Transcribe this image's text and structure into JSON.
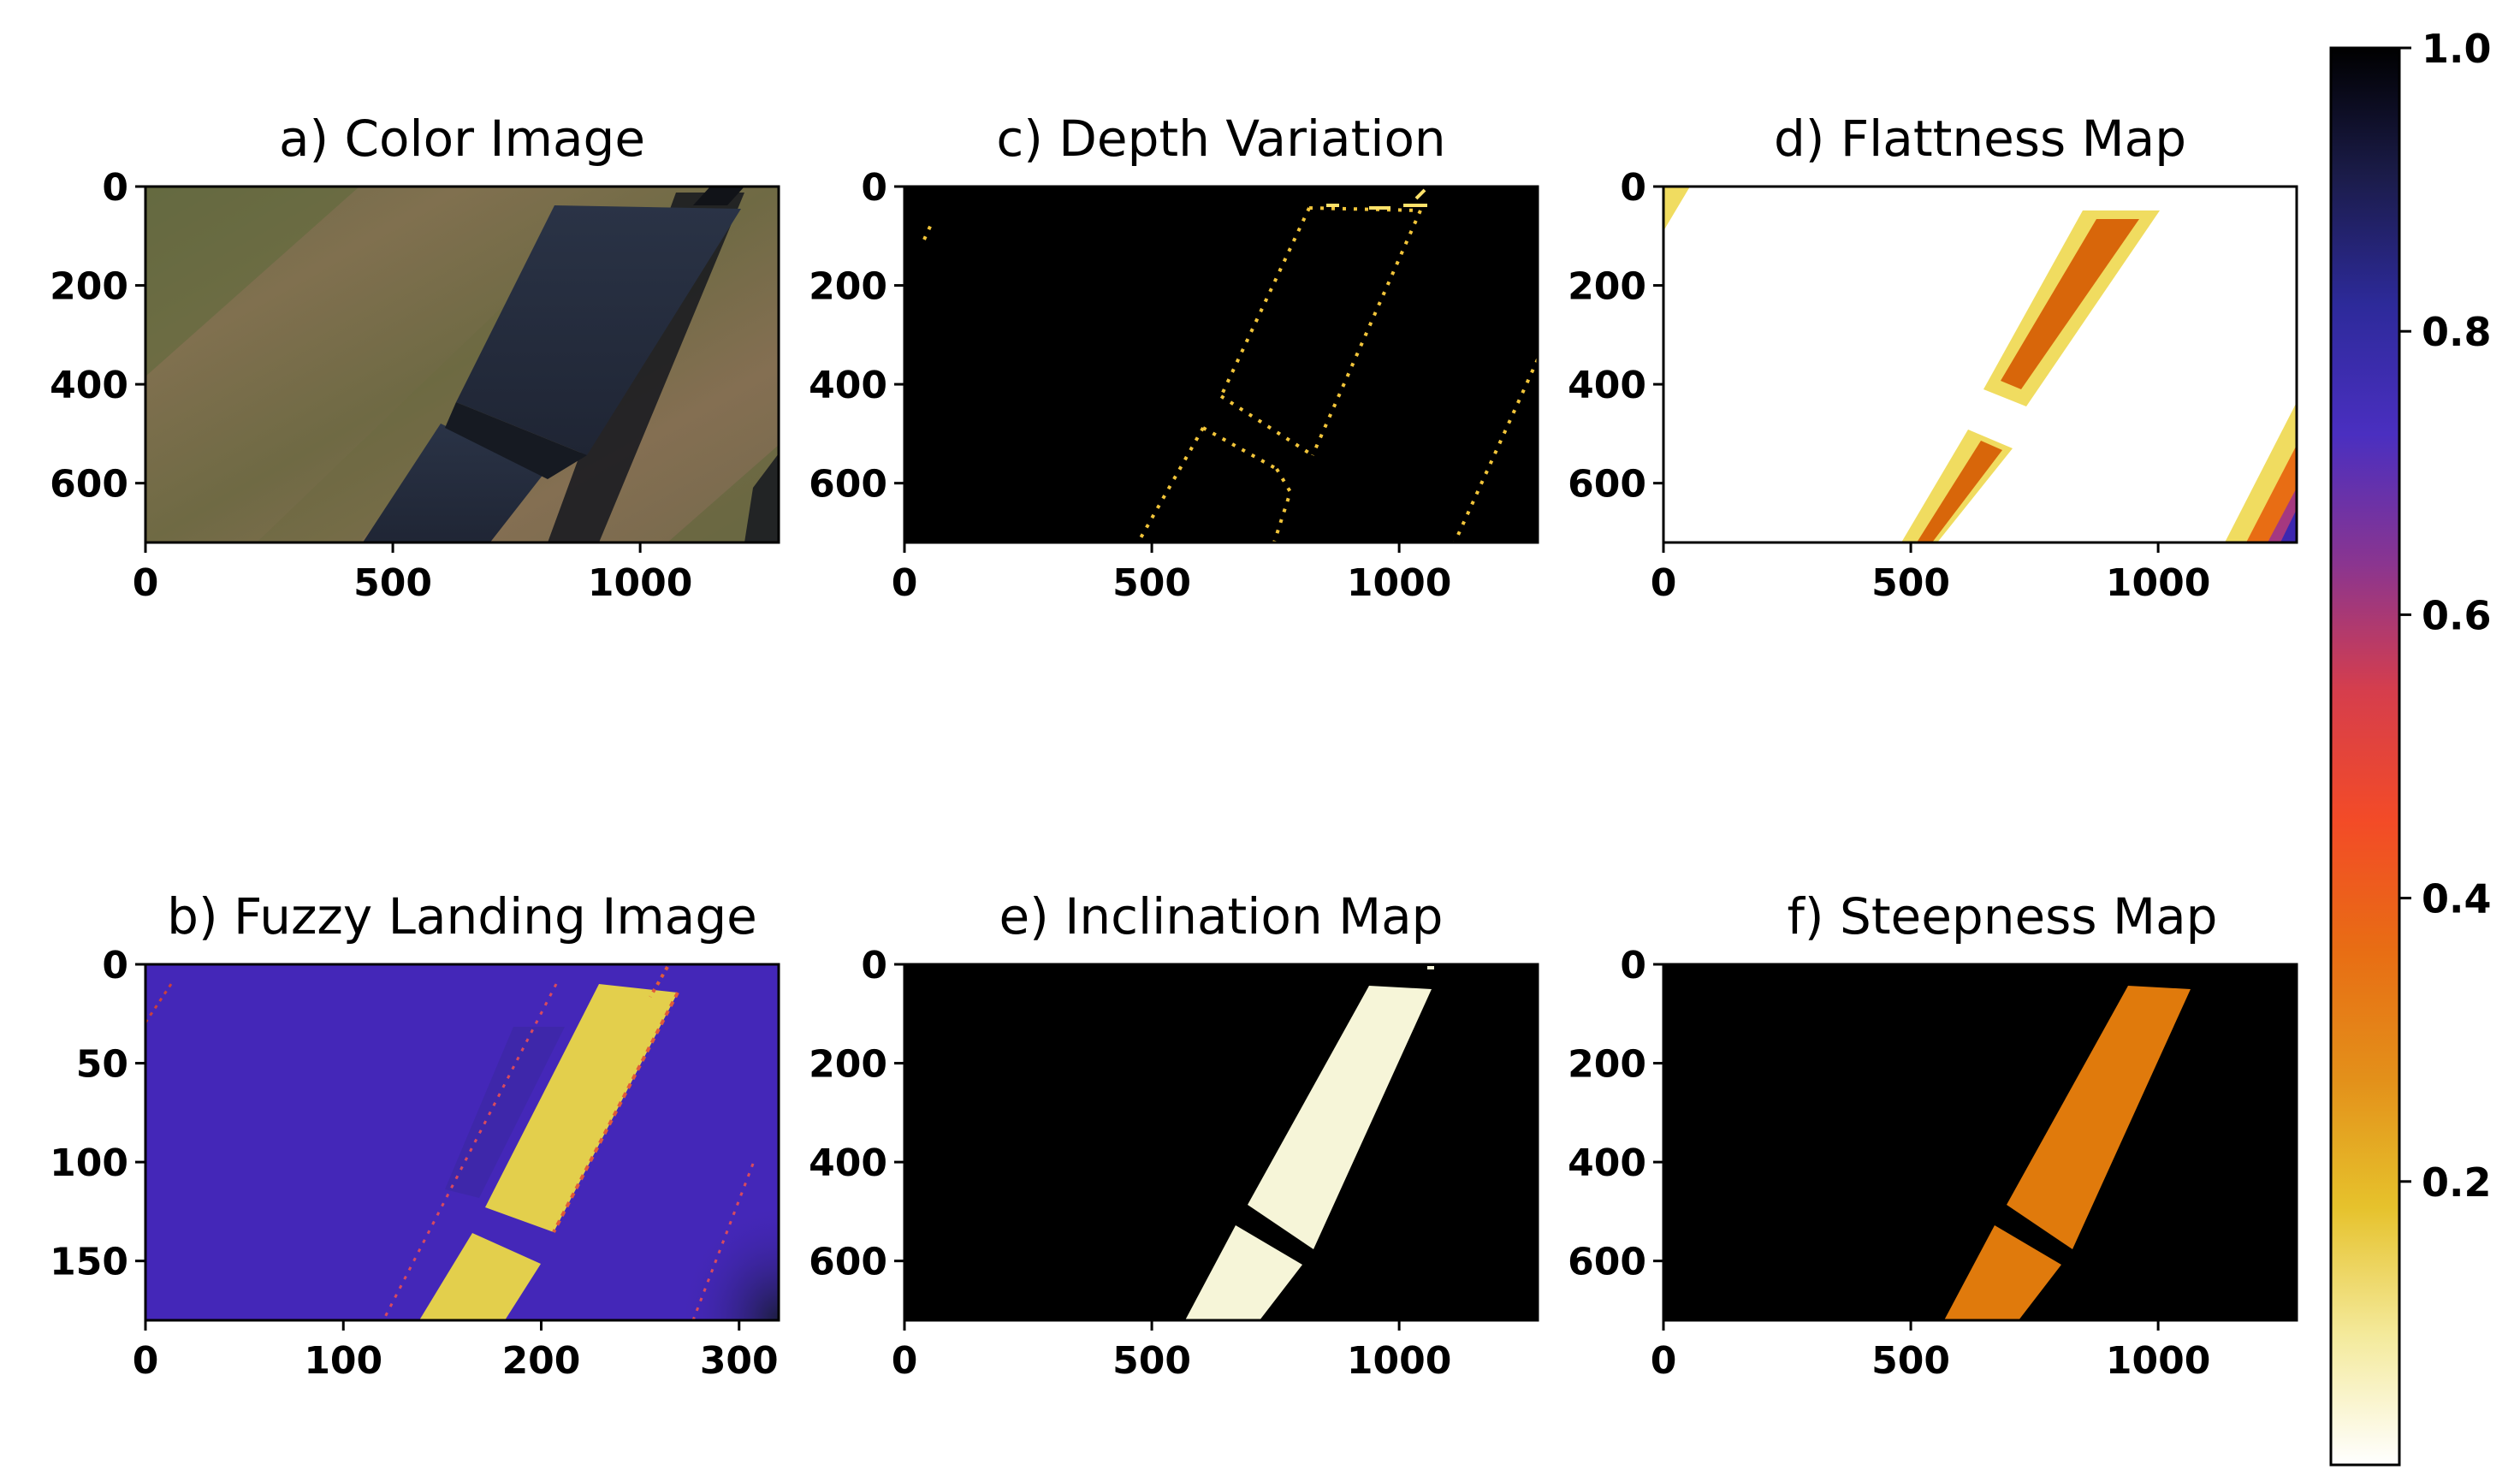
{
  "chart_data": [
    {
      "id": "color_image",
      "type": "image",
      "title": "a) Color Image",
      "xlim": [
        0,
        1280
      ],
      "ylim": [
        720,
        0
      ],
      "xticks": [
        0,
        500,
        1000
      ],
      "yticks": [
        0,
        200,
        400,
        600
      ],
      "colors": {
        "ground": "#7a6a4c",
        "grass": "#5b6b36",
        "panel": "#222a3a",
        "shadow": "#14171c"
      }
    },
    {
      "id": "fuzzy_landing_image",
      "type": "heatmap",
      "title": "b) Fuzzy Landing Image",
      "xlim": [
        0,
        320
      ],
      "ylim": [
        180,
        0
      ],
      "xticks": [
        0,
        100,
        200,
        300
      ],
      "yticks": [
        0,
        50,
        100,
        150
      ],
      "colors": {
        "background": "#4427b8",
        "safe_region": "#e3cf4c",
        "edge": "#e05a3a"
      }
    },
    {
      "id": "depth_variation",
      "type": "heatmap",
      "title": "c) Depth Variation",
      "xlim": [
        0,
        1280
      ],
      "ylim": [
        720,
        0
      ],
      "xticks": [
        0,
        500,
        1000
      ],
      "yticks": [
        0,
        200,
        400,
        600
      ],
      "colors": {
        "background": "#000000",
        "edge": "#f2c53a"
      }
    },
    {
      "id": "flatness_map",
      "type": "heatmap",
      "title": "d) Flattness Map",
      "xlim": [
        0,
        1280
      ],
      "ylim": [
        720,
        0
      ],
      "xticks": [
        0,
        500,
        1000
      ],
      "yticks": [
        0,
        200,
        400,
        600
      ],
      "colors": {
        "background": "#ffffff",
        "band_outer": "#efd64a",
        "band_core": "#d85e08",
        "corner": "#3c27b0"
      }
    },
    {
      "id": "inclination_map",
      "type": "heatmap",
      "title": "e) Inclination Map",
      "xlim": [
        0,
        1280
      ],
      "ylim": [
        720,
        0
      ],
      "xticks": [
        0,
        500,
        1000
      ],
      "yticks": [
        0,
        200,
        400,
        600
      ],
      "colors": {
        "background": "#000000",
        "region": "#f6f5d8"
      }
    },
    {
      "id": "steepness_map",
      "type": "heatmap",
      "title": "f) Steepness Map",
      "xlim": [
        0,
        1280
      ],
      "ylim": [
        720,
        0
      ],
      "xticks": [
        0,
        500,
        1000
      ],
      "yticks": [
        0,
        200,
        400,
        600
      ],
      "colors": {
        "background": "#000000",
        "region": "#e07a0c"
      }
    }
  ],
  "colorbar": {
    "range": [
      0,
      1.0
    ],
    "ticks": [
      "0.2",
      "0.4",
      "0.6",
      "0.8",
      "1.0"
    ],
    "tick_values": [
      0.2,
      0.4,
      0.6,
      0.8,
      1.0
    ],
    "colormap": "CMRmap_r",
    "stops": [
      "#ffffff",
      "#f4ea9c",
      "#e6c22c",
      "#e3901a",
      "#e86d14",
      "#f34b27",
      "#d63e4c",
      "#8a3590",
      "#4a2fc0",
      "#2d2a9a",
      "#1b1c4a",
      "#000000"
    ]
  }
}
